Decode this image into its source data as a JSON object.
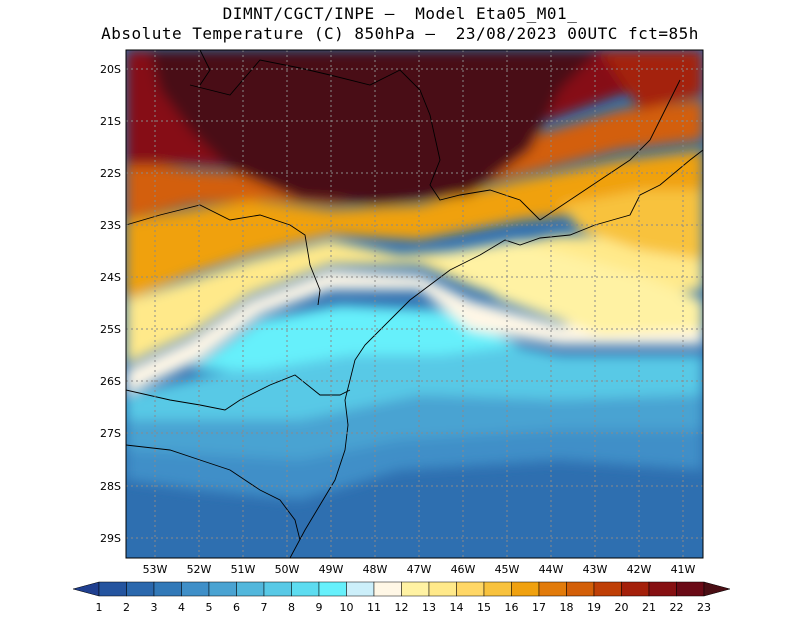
{
  "title": {
    "line1": "DIMNT/CGCT/INPE –  Model Eta05_M01_",
    "line2": "Absolute Temperature (C) 850hPa –  23/08/2023 00UTC fct=85h"
  },
  "axes": {
    "lat_labels": [
      "20S",
      "21S",
      "22S",
      "23S",
      "24S",
      "25S",
      "26S",
      "27S",
      "28S",
      "29S"
    ],
    "lon_labels": [
      "53W",
      "52W",
      "51W",
      "50W",
      "49W",
      "48W",
      "47W",
      "46W",
      "45W",
      "44W",
      "43W",
      "42W",
      "41W"
    ]
  },
  "colorbar": {
    "labels": [
      "1",
      "2",
      "3",
      "4",
      "5",
      "6",
      "7",
      "8",
      "9",
      "10",
      "11",
      "12",
      "13",
      "14",
      "15",
      "16",
      "17",
      "18",
      "19",
      "20",
      "21",
      "22",
      "23"
    ],
    "colors": [
      "#1f3f8f",
      "#24549f",
      "#2b68ad",
      "#3279b8",
      "#3f8fc8",
      "#4aa3d2",
      "#52b7dc",
      "#58c9e6",
      "#5ddcf0",
      "#66f0fb",
      "#cceffa",
      "#fff7e6",
      "#fff2a3",
      "#ffe98a",
      "#ffd766",
      "#f8c23d",
      "#f0a10f",
      "#e27b0a",
      "#d35f08",
      "#bf3f06",
      "#a4200a",
      "#861012",
      "#6a0a16",
      "#4a0e14"
    ]
  },
  "map_colors": {
    "hot_core": "#4a1016",
    "coastline": "#000000",
    "grid": "#8a8a8a"
  }
}
